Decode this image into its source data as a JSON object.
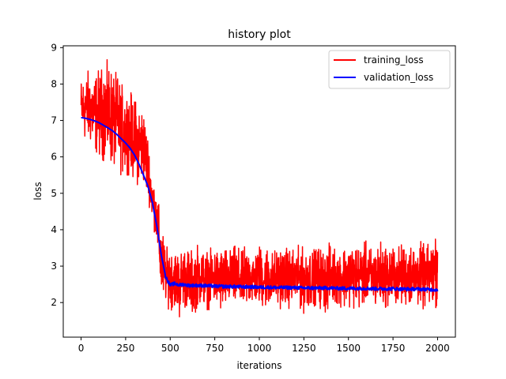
{
  "chart_data": {
    "type": "line",
    "title": "history plot",
    "xlabel": "iterations",
    "ylabel": "loss",
    "xlim": [
      -100,
      2100
    ],
    "ylim": [
      1.05,
      9.05
    ],
    "x_ticks": [
      0,
      250,
      500,
      750,
      1000,
      1250,
      1500,
      1750,
      2000
    ],
    "y_ticks": [
      2,
      3,
      4,
      5,
      6,
      7,
      8,
      9
    ],
    "legend_position": "top-right",
    "series": [
      {
        "name": "training_loss",
        "color": "#ff0000",
        "x": [
          0,
          25,
          50,
          75,
          100,
          125,
          150,
          175,
          200,
          225,
          250,
          275,
          300,
          325,
          350,
          375,
          400,
          425,
          450,
          475,
          500,
          525,
          550,
          575,
          600,
          625,
          650,
          675,
          700,
          725,
          750,
          775,
          800,
          825,
          850,
          875,
          900,
          925,
          950,
          975,
          1000,
          1025,
          1050,
          1075,
          1100,
          1125,
          1150,
          1175,
          1200,
          1225,
          1250,
          1275,
          1300,
          1325,
          1350,
          1375,
          1400,
          1425,
          1450,
          1475,
          1500,
          1525,
          1550,
          1575,
          1600,
          1625,
          1650,
          1675,
          1700,
          1725,
          1750,
          1775,
          1800,
          1825,
          1850,
          1875,
          1900,
          1925,
          1950,
          1975,
          2000
        ],
        "min": [
          6.5,
          6.4,
          6.3,
          6.1,
          6.0,
          5.9,
          5.8,
          5.7,
          5.6,
          5.5,
          5.5,
          5.5,
          5.3,
          5.2,
          5.2,
          4.8,
          4.2,
          3.6,
          1.9,
          2.0,
          1.7,
          1.9,
          1.5,
          1.9,
          1.7,
          1.6,
          1.8,
          1.9,
          1.8,
          1.8,
          1.9,
          1.7,
          1.7,
          1.9,
          1.9,
          1.8,
          1.8,
          1.8,
          1.9,
          1.9,
          1.9,
          1.8,
          1.8,
          1.9,
          1.9,
          1.8,
          1.9,
          1.8,
          1.9,
          1.8,
          1.7,
          1.8,
          1.9,
          1.9,
          1.8,
          1.7,
          1.9,
          1.9,
          1.9,
          1.8,
          1.9,
          1.8,
          1.8,
          1.9,
          1.9,
          1.9,
          1.8,
          1.8,
          1.9,
          1.8,
          1.9,
          1.9,
          1.9,
          1.9,
          1.9,
          1.8,
          1.9,
          1.8,
          1.9,
          1.8,
          1.9
        ],
        "max": [
          8.2,
          8.3,
          8.4,
          8.3,
          8.4,
          8.5,
          8.7,
          8.4,
          8.3,
          8.0,
          7.9,
          7.8,
          7.6,
          7.5,
          7.4,
          6.6,
          5.5,
          5.0,
          4.3,
          3.5,
          3.6,
          3.5,
          3.4,
          3.6,
          3.5,
          3.4,
          3.6,
          3.6,
          3.4,
          3.5,
          3.5,
          3.5,
          3.6,
          3.4,
          3.5,
          3.6,
          3.4,
          3.6,
          3.5,
          3.4,
          3.6,
          3.5,
          3.6,
          3.4,
          3.5,
          3.6,
          3.5,
          3.5,
          3.5,
          3.6,
          3.5,
          3.6,
          3.4,
          3.6,
          3.5,
          3.5,
          3.7,
          3.5,
          3.5,
          3.6,
          3.6,
          3.7,
          3.6,
          3.6,
          3.7,
          3.5,
          3.6,
          3.7,
          3.6,
          3.6,
          3.6,
          3.5,
          3.6,
          3.6,
          3.7,
          3.6,
          3.7,
          3.6,
          3.6,
          3.7,
          4.3
        ]
      },
      {
        "name": "validation_loss",
        "color": "#0000ff",
        "x": [
          0,
          25,
          50,
          75,
          100,
          125,
          150,
          175,
          200,
          225,
          250,
          275,
          300,
          325,
          350,
          375,
          400,
          425,
          450,
          475,
          500,
          525,
          550,
          575,
          600,
          650,
          700,
          750,
          800,
          850,
          900,
          950,
          1000,
          1050,
          1100,
          1150,
          1200,
          1250,
          1300,
          1350,
          1400,
          1450,
          1500,
          1550,
          1600,
          1650,
          1700,
          1750,
          1800,
          1850,
          1900,
          1950,
          2000
        ],
        "y": [
          7.08,
          7.06,
          7.03,
          6.99,
          6.94,
          6.87,
          6.8,
          6.72,
          6.62,
          6.5,
          6.38,
          6.24,
          6.05,
          5.8,
          5.5,
          5.2,
          4.75,
          4.1,
          3.3,
          2.7,
          2.48,
          2.52,
          2.48,
          2.5,
          2.47,
          2.47,
          2.46,
          2.45,
          2.44,
          2.44,
          2.43,
          2.43,
          2.42,
          2.42,
          2.41,
          2.41,
          2.41,
          2.4,
          2.4,
          2.4,
          2.4,
          2.39,
          2.39,
          2.39,
          2.39,
          2.38,
          2.38,
          2.38,
          2.37,
          2.37,
          2.37,
          2.36,
          2.35
        ]
      }
    ]
  }
}
